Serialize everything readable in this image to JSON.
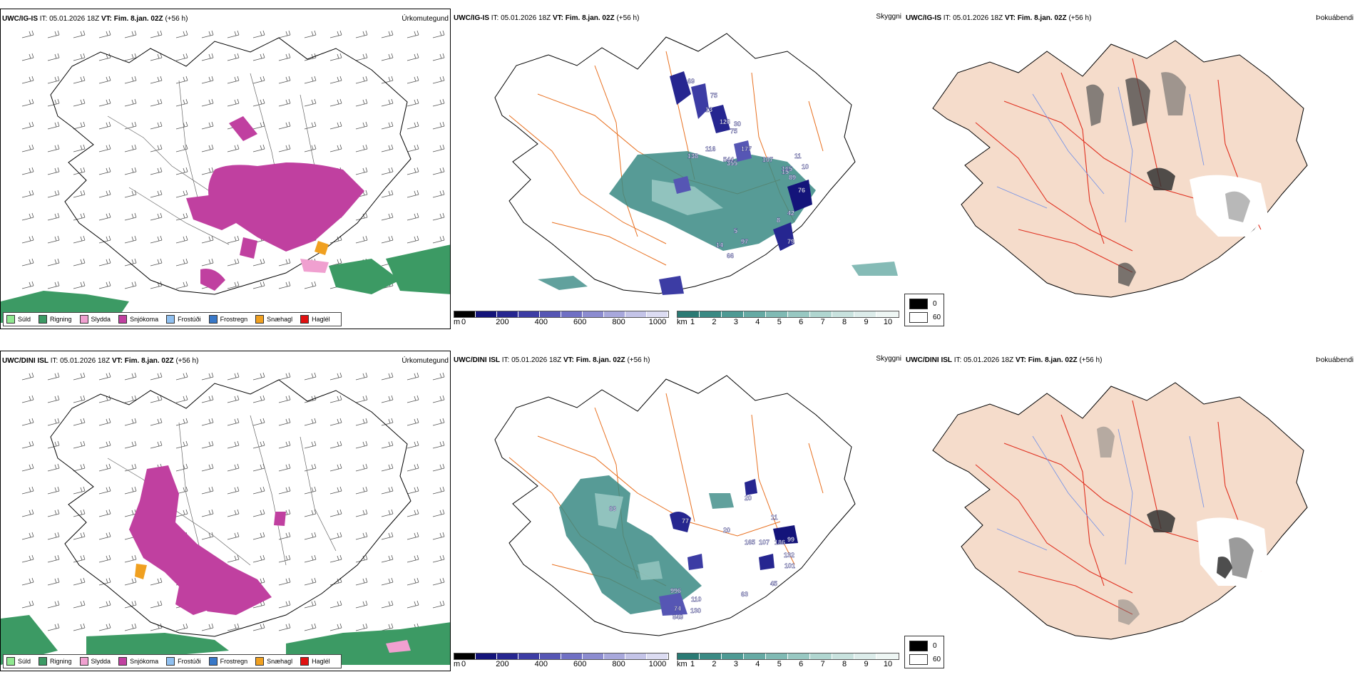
{
  "rows": [
    {
      "model": "UWC/IG-IS",
      "it": "IT: 05.01.2026 18Z",
      "vt": "VT: Fim. 8.jan. 02Z",
      "lead": "(+56 h)",
      "labels": [
        "69",
        "75",
        "13",
        "126",
        "30",
        "75",
        "116",
        "138",
        "544",
        "177",
        "355",
        "107",
        "165",
        "15",
        "11",
        "10",
        "89",
        "76",
        "42",
        "8",
        "97",
        "66",
        "79",
        "14",
        "5"
      ]
    },
    {
      "model": "UWC/DINI ISL",
      "it": "IT: 05.01.2026 18Z",
      "vt": "VT: Fim. 8.jan. 02Z",
      "lead": "(+56 h)",
      "labels": [
        "77",
        "11",
        "107",
        "165",
        "186",
        "99",
        "132",
        "101",
        "45",
        "63",
        "996",
        "110",
        "74",
        "130",
        "849",
        "63",
        "20",
        "20"
      ]
    }
  ],
  "panel_titles": {
    "precip": "Úrkomutegund",
    "cloud": "Skyggni",
    "fog": "Þokuábendi"
  },
  "precip_legend": [
    {
      "label": "Súld",
      "color": "#90e890"
    },
    {
      "label": "Rigning",
      "color": "#3c9a64"
    },
    {
      "label": "Slydda",
      "color": "#f0a0d0"
    },
    {
      "label": "Snjókoma",
      "color": "#c040a0"
    },
    {
      "label": "Frostúði",
      "color": "#90c0f0"
    },
    {
      "label": "Frostregn",
      "color": "#3878c8"
    },
    {
      "label": "Snæhagl",
      "color": "#f0a020"
    },
    {
      "label": "Haglél",
      "color": "#e01010"
    }
  ],
  "cloudbase_scale": {
    "unit": "m",
    "ticks": [
      "0",
      "200",
      "400",
      "600",
      "800",
      "1000"
    ],
    "colors": [
      "#000000",
      "#14147a",
      "#262690",
      "#3c3ca4",
      "#5656b4",
      "#7070c4",
      "#8c8cd0",
      "#a8a8dc",
      "#c4c4e8",
      "#dcdcf2"
    ]
  },
  "visibility_scale": {
    "unit": "km",
    "ticks": [
      "1",
      "2",
      "3",
      "4",
      "5",
      "6",
      "7",
      "8",
      "9",
      "10"
    ],
    "colors": [
      "#2a7a74",
      "#3a8a84",
      "#4e9a94",
      "#66aaa4",
      "#80bab4",
      "#98c8c2",
      "#b0d6d0",
      "#c8e2de",
      "#dcecea",
      "#eef6f4"
    ]
  },
  "fog_legend": [
    {
      "value": "0",
      "color": "#000000"
    },
    {
      "value": "60",
      "color": "#ffffff"
    }
  ],
  "colors": {
    "land_fog": "#f5dccb",
    "road": "#e87020",
    "road_red": "#e03020",
    "river": "#7090e8",
    "snow": "#c040a0",
    "rain": "#3c9a64"
  }
}
